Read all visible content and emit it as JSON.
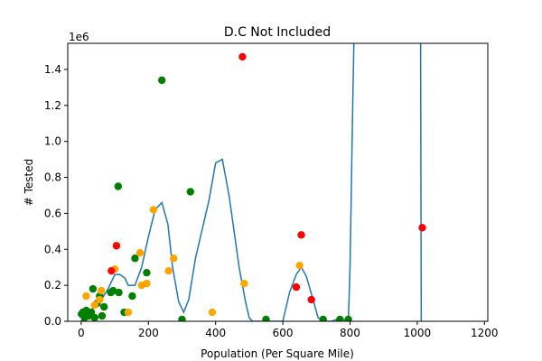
{
  "chart_data": {
    "type": "scatter",
    "title": "D.C Not Included",
    "xlabel": "Population (Per Square Mile)",
    "ylabel": "# Tested",
    "y_offset_label": "1e6",
    "xlim": [
      -40,
      1210
    ],
    "ylim": [
      0,
      1.545
    ],
    "x_ticks": [
      0,
      200,
      400,
      600,
      800,
      1000,
      1200
    ],
    "y_ticks": [
      0.0,
      0.2,
      0.4,
      0.6,
      0.8,
      1.0,
      1.2,
      1.4
    ],
    "y_tick_labels": [
      "0.0",
      "0.2",
      "0.4",
      "0.6",
      "0.8",
      "1.0",
      "1.2",
      "1.4"
    ],
    "grid": false,
    "colors": {
      "green": "#008000",
      "orange": "#ffa500",
      "red": "#ff0000",
      "line": "#1f77b4"
    },
    "series": [
      {
        "color_key": "green",
        "points": [
          [
            1,
            0.04
          ],
          [
            5,
            0.05
          ],
          [
            10,
            0.02
          ],
          [
            15,
            0.06
          ],
          [
            22,
            0.03
          ],
          [
            30,
            0.05
          ],
          [
            35,
            0.18
          ],
          [
            40,
            0.02
          ],
          [
            48,
            0.1
          ],
          [
            55,
            0.14
          ],
          [
            62,
            0.03
          ],
          [
            68,
            0.08
          ],
          [
            88,
            0.16
          ],
          [
            95,
            0.17
          ],
          [
            110,
            0.75
          ],
          [
            112,
            0.16
          ],
          [
            128,
            0.05
          ],
          [
            152,
            0.14
          ],
          [
            160,
            0.35
          ],
          [
            195,
            0.27
          ],
          [
            240,
            1.34
          ],
          [
            300,
            0.01
          ],
          [
            325,
            0.72
          ],
          [
            550,
            0.01
          ],
          [
            720,
            0.01
          ],
          [
            770,
            0.01
          ],
          [
            795,
            0.01
          ]
        ]
      },
      {
        "color_key": "orange",
        "points": [
          [
            15,
            0.14
          ],
          [
            40,
            0.09
          ],
          [
            55,
            0.12
          ],
          [
            60,
            0.17
          ],
          [
            100,
            0.29
          ],
          [
            140,
            0.05
          ],
          [
            175,
            0.38
          ],
          [
            180,
            0.2
          ],
          [
            195,
            0.21
          ],
          [
            215,
            0.62
          ],
          [
            260,
            0.28
          ],
          [
            275,
            0.35
          ],
          [
            390,
            0.05
          ],
          [
            485,
            0.21
          ],
          [
            650,
            0.31
          ]
        ]
      },
      {
        "color_key": "red",
        "points": [
          [
            90,
            0.28
          ],
          [
            105,
            0.42
          ],
          [
            480,
            1.47
          ],
          [
            640,
            0.19
          ],
          [
            655,
            0.48
          ],
          [
            685,
            0.12
          ],
          [
            1015,
            0.52
          ]
        ]
      }
    ],
    "line": {
      "color_key": "line",
      "points": [
        [
          0,
          0.0
        ],
        [
          20,
          0.05
        ],
        [
          40,
          0.08
        ],
        [
          60,
          0.12
        ],
        [
          80,
          0.18
        ],
        [
          100,
          0.26
        ],
        [
          115,
          0.26
        ],
        [
          130,
          0.24
        ],
        [
          140,
          0.2
        ],
        [
          160,
          0.2
        ],
        [
          180,
          0.3
        ],
        [
          200,
          0.47
        ],
        [
          220,
          0.62
        ],
        [
          240,
          0.66
        ],
        [
          258,
          0.54
        ],
        [
          272,
          0.3
        ],
        [
          290,
          0.11
        ],
        [
          305,
          0.05
        ],
        [
          320,
          0.12
        ],
        [
          340,
          0.35
        ],
        [
          380,
          0.67
        ],
        [
          400,
          0.88
        ],
        [
          420,
          0.9
        ],
        [
          440,
          0.7
        ],
        [
          470,
          0.3
        ],
        [
          490,
          0.1
        ],
        [
          500,
          0.02
        ],
        [
          510,
          0.0
        ],
        [
          600,
          0.0
        ],
        [
          620,
          0.16
        ],
        [
          640,
          0.26
        ],
        [
          655,
          0.3
        ],
        [
          670,
          0.25
        ],
        [
          690,
          0.12
        ],
        [
          705,
          0.02
        ],
        [
          720,
          0.0
        ],
        [
          745,
          0.0
        ],
        [
          760,
          0.01
        ],
        [
          780,
          0.01
        ],
        [
          795,
          0.0
        ],
        [
          800,
          0.3
        ],
        [
          808,
          1.2
        ],
        [
          812,
          1.6
        ],
        [
          1010,
          1.6
        ],
        [
          1012,
          0.0
        ]
      ]
    }
  }
}
